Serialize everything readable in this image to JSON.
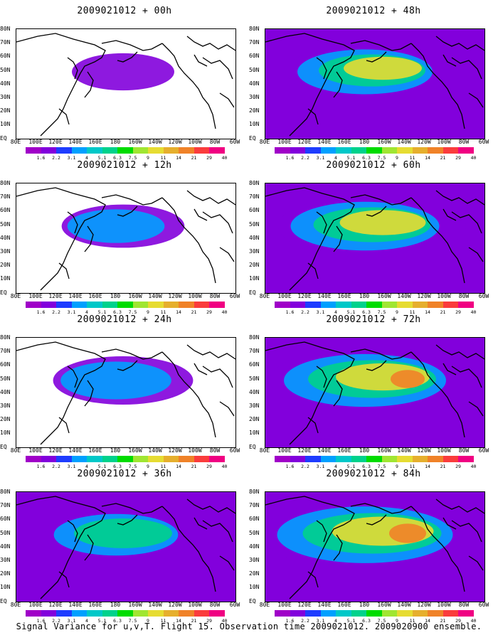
{
  "panels": [
    {
      "title": "2009021012 + 00h",
      "level": 0.1
    },
    {
      "title": "2009021012 + 48h",
      "level": 0.5
    },
    {
      "title": "2009021012 + 12h",
      "level": 0.22
    },
    {
      "title": "2009021012 + 60h",
      "level": 0.6
    },
    {
      "title": "2009021012 + 24h",
      "level": 0.32
    },
    {
      "title": "2009021012 + 72h",
      "level": 0.7
    },
    {
      "title": "2009021012 + 36h",
      "level": 0.42
    },
    {
      "title": "2009021012 + 84h",
      "level": 0.8
    }
  ],
  "lat_labels": [
    "80N",
    "70N",
    "60N",
    "50N",
    "40N",
    "30N",
    "20N",
    "10N",
    "EQ"
  ],
  "lon_labels": [
    "80E",
    "100E",
    "120E",
    "140E",
    "160E",
    "180",
    "160W",
    "140W",
    "120W",
    "100W",
    "80W",
    "60W"
  ],
  "colorbar": {
    "labels": [
      "1.6",
      "2.2",
      "3.1",
      "4",
      "5.1",
      "6.3",
      "7.5",
      "9",
      "11",
      "14",
      "21",
      "29",
      "40"
    ],
    "colors": [
      "#a000c8",
      "#8200dc",
      "#1e3cff",
      "#00a0ff",
      "#00c8c8",
      "#00d28c",
      "#00dc00",
      "#a0e632",
      "#e6dc32",
      "#e6af2d",
      "#f08228",
      "#fa3c3c",
      "#f00082"
    ]
  },
  "caption": "Signal Variance for u,v,T. Flight 15. Observation time 2009021012. 2009020900 ensemble."
}
